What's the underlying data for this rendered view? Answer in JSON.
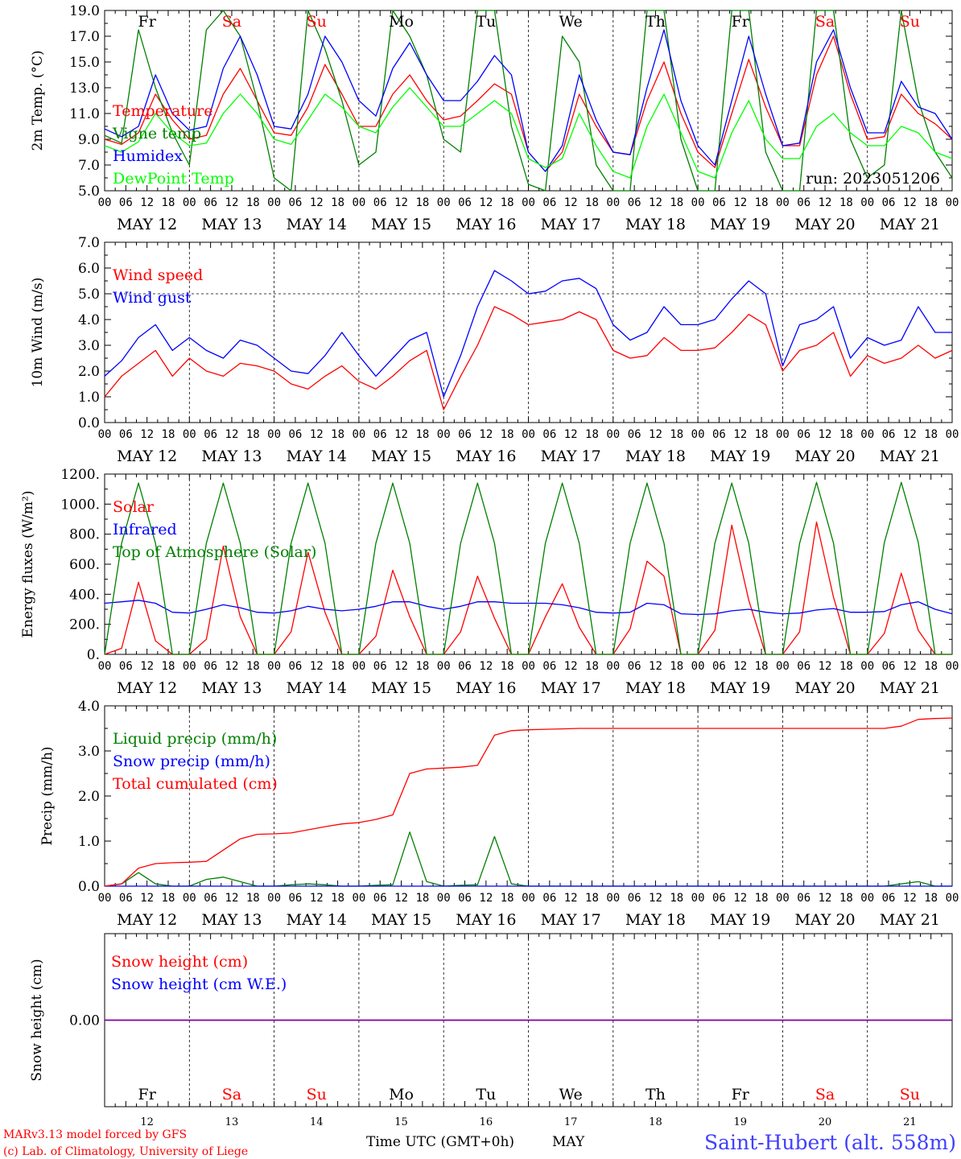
{
  "footer": {
    "model": "MARv3.13 model forced by GFS",
    "credit": "(c) Lab. of Climatology, University of Liege",
    "time_label": "Time UTC (GMT+0h)",
    "month_label": "MAY",
    "station": "Saint-Hubert (alt. 558m)",
    "day_numbers": [
      "12",
      "13",
      "14",
      "15",
      "16",
      "17",
      "18",
      "19",
      "20",
      "21"
    ]
  },
  "days": [
    {
      "abbr": "Fr",
      "date": "MAY 12",
      "weekend": false
    },
    {
      "abbr": "Sa",
      "date": "MAY 13",
      "weekend": true
    },
    {
      "abbr": "Su",
      "date": "MAY 14",
      "weekend": true
    },
    {
      "abbr": "Mo",
      "date": "MAY 15",
      "weekend": false
    },
    {
      "abbr": "Tu",
      "date": "MAY 16",
      "weekend": false
    },
    {
      "abbr": "We",
      "date": "MAY 17",
      "weekend": false
    },
    {
      "abbr": "Th",
      "date": "MAY 18",
      "weekend": false
    },
    {
      "abbr": "Fr",
      "date": "MAY 19",
      "weekend": false
    },
    {
      "abbr": "Sa",
      "date": "MAY 20",
      "weekend": true
    },
    {
      "abbr": "Su",
      "date": "MAY 21",
      "weekend": true
    }
  ],
  "hour_ticks": [
    "00",
    "06",
    "12",
    "18"
  ],
  "colors": {
    "red": "#ff0000",
    "blue": "#0000ff",
    "green": "#008000",
    "lightgreen": "#00ff00",
    "weekend": "#ff0000",
    "purple": "#8000a0"
  },
  "chart_data": [
    {
      "type": "line",
      "ylabel": "2m Temp. (°C)",
      "ylim": [
        5.0,
        19.0
      ],
      "yticks": [
        "5.0",
        "7.0",
        "9.0",
        "11.0",
        "13.0",
        "15.0",
        "17.0",
        "19.0"
      ],
      "run": "run: 2023051206",
      "x_hours_step": 6,
      "series": [
        {
          "name": "Temperature",
          "color": "#ff0000",
          "values": [
            9.0,
            8.6,
            9.5,
            12.5,
            10.5,
            9.0,
            9.3,
            12.5,
            14.5,
            12.0,
            9.5,
            9.3,
            11.5,
            14.8,
            12.5,
            10.0,
            10.0,
            12.5,
            14.0,
            12.0,
            10.5,
            10.8,
            12.0,
            13.3,
            12.5,
            8.0,
            6.5,
            8.0,
            12.5,
            10.0,
            8.0,
            7.8,
            12.0,
            15.0,
            11.0,
            8.0,
            6.8,
            11.0,
            15.2,
            11.5,
            8.5,
            8.5,
            14.0,
            17.0,
            12.5,
            9.0,
            9.2,
            12.5,
            11.0,
            10.2,
            9.0
          ]
        },
        {
          "name": "Vigne temp",
          "color": "#008000",
          "values": [
            9.3,
            8.7,
            17.5,
            13.0,
            9.5,
            7.0,
            17.5,
            19.0,
            17.0,
            12.0,
            6.0,
            5.0,
            19.0,
            16.0,
            12.0,
            7.0,
            8.0,
            19.0,
            17.0,
            14.0,
            9.0,
            8.0,
            19.0,
            19.0,
            10.0,
            5.5,
            5.0,
            17.0,
            15.0,
            7.0,
            5.0,
            5.0,
            19.0,
            19.0,
            9.0,
            5.0,
            5.0,
            19.0,
            19.0,
            8.0,
            5.0,
            5.0,
            19.0,
            19.0,
            9.0,
            6.0,
            7.0,
            19.0,
            12.0,
            8.0,
            6.0
          ]
        },
        {
          "name": "Humidex",
          "color": "#0000ff",
          "values": [
            9.8,
            9.2,
            10.0,
            14.0,
            11.0,
            9.7,
            10.0,
            14.5,
            17.0,
            14.0,
            10.0,
            9.8,
            12.5,
            17.0,
            15.0,
            12.0,
            10.8,
            14.5,
            16.5,
            14.0,
            12.0,
            12.0,
            13.5,
            15.5,
            14.0,
            8.0,
            6.5,
            8.5,
            14.0,
            10.5,
            8.0,
            7.8,
            13.0,
            17.5,
            12.0,
            8.5,
            7.0,
            12.0,
            17.0,
            12.5,
            8.5,
            8.7,
            15.0,
            17.5,
            13.0,
            9.5,
            9.5,
            13.5,
            11.5,
            11.0,
            9.0
          ]
        },
        {
          "name": "DewPoint Temp",
          "color": "#00ff00",
          "values": [
            8.5,
            8.0,
            8.8,
            11.0,
            9.5,
            8.5,
            8.7,
            11.0,
            12.5,
            11.0,
            9.0,
            8.6,
            10.5,
            12.5,
            11.5,
            10.0,
            9.5,
            11.5,
            13.0,
            11.5,
            10.0,
            10.0,
            11.0,
            12.0,
            11.0,
            7.5,
            6.8,
            7.5,
            11.0,
            8.5,
            6.5,
            6.0,
            10.0,
            12.5,
            9.5,
            6.5,
            6.0,
            9.5,
            12.0,
            9.0,
            7.5,
            7.5,
            10.0,
            11.0,
            9.5,
            8.5,
            8.5,
            10.0,
            9.5,
            8.0,
            7.5
          ]
        }
      ]
    },
    {
      "type": "line",
      "ylabel": "10m Wind (m/s)",
      "ylim": [
        0.0,
        7.0
      ],
      "yticks": [
        "0.0",
        "1.0",
        "2.0",
        "3.0",
        "4.0",
        "5.0",
        "6.0",
        "7.0"
      ],
      "ref_line": 5.0,
      "series": [
        {
          "name": "Wind speed",
          "color": "#ff0000",
          "values": [
            1.0,
            1.8,
            2.3,
            2.8,
            1.8,
            2.5,
            2.0,
            1.8,
            2.3,
            2.2,
            2.0,
            1.5,
            1.3,
            1.8,
            2.2,
            1.6,
            1.3,
            1.8,
            2.4,
            2.8,
            0.5,
            1.8,
            3.0,
            4.5,
            4.2,
            3.8,
            3.9,
            4.0,
            4.3,
            4.0,
            2.8,
            2.5,
            2.6,
            3.3,
            2.8,
            2.8,
            2.9,
            3.5,
            4.2,
            3.8,
            2.0,
            2.8,
            3.0,
            3.5,
            1.8,
            2.6,
            2.3,
            2.5,
            3.0,
            2.5,
            2.8
          ]
        },
        {
          "name": "Wind gust",
          "color": "#0000ff",
          "values": [
            1.8,
            2.4,
            3.3,
            3.8,
            2.8,
            3.3,
            2.8,
            2.5,
            3.2,
            3.0,
            2.5,
            2.0,
            1.9,
            2.6,
            3.5,
            2.6,
            1.8,
            2.5,
            3.2,
            3.5,
            1.0,
            2.6,
            4.5,
            5.9,
            5.5,
            5.0,
            5.1,
            5.5,
            5.6,
            5.2,
            3.8,
            3.2,
            3.5,
            4.5,
            3.8,
            3.8,
            4.0,
            4.8,
            5.5,
            5.0,
            2.2,
            3.8,
            4.0,
            4.5,
            2.5,
            3.3,
            3.0,
            3.2,
            4.5,
            3.5,
            3.5
          ]
        }
      ]
    },
    {
      "type": "line",
      "ylabel": "Energy fluxes (W/m²)",
      "ylim": [
        0,
        1200
      ],
      "yticks": [
        "0.",
        "200.",
        "400.",
        "600.",
        "800.",
        "1000.",
        "1200."
      ],
      "series": [
        {
          "name": "Solar",
          "color": "#ff0000",
          "values": [
            0,
            40,
            480,
            90,
            0,
            0,
            100,
            720,
            250,
            0,
            0,
            150,
            680,
            280,
            0,
            0,
            120,
            560,
            250,
            0,
            0,
            150,
            520,
            240,
            0,
            0,
            250,
            470,
            180,
            0,
            0,
            170,
            620,
            520,
            0,
            0,
            160,
            860,
            360,
            0,
            0,
            150,
            880,
            380,
            0,
            0,
            140,
            540,
            160,
            0,
            0
          ]
        },
        {
          "name": "Infrared",
          "color": "#0000ff",
          "values": [
            340,
            350,
            360,
            340,
            280,
            275,
            300,
            330,
            310,
            280,
            275,
            290,
            320,
            300,
            290,
            300,
            320,
            350,
            350,
            320,
            300,
            320,
            350,
            350,
            340,
            340,
            340,
            330,
            310,
            280,
            275,
            280,
            340,
            330,
            270,
            265,
            270,
            290,
            300,
            280,
            270,
            275,
            295,
            305,
            280,
            280,
            285,
            330,
            350,
            300,
            270
          ]
        },
        {
          "name": "Top of Atmosphere (Solar)",
          "color": "#008000",
          "values": [
            0,
            740,
            1140,
            740,
            0,
            0,
            740,
            1140,
            740,
            0,
            0,
            740,
            1140,
            740,
            0,
            0,
            740,
            1140,
            740,
            0,
            0,
            740,
            1140,
            740,
            0,
            0,
            740,
            1140,
            740,
            0,
            0,
            740,
            1140,
            740,
            0,
            0,
            740,
            1140,
            740,
            0,
            0,
            740,
            1145,
            740,
            0,
            0,
            745,
            1145,
            745,
            0,
            0
          ]
        }
      ]
    },
    {
      "type": "line",
      "ylabel": "Precip (mm/h)",
      "ylim": [
        0.0,
        4.0
      ],
      "yticks": [
        "0.0",
        "1.0",
        "2.0",
        "3.0",
        "4.0"
      ],
      "series": [
        {
          "name": "Liquid precip (mm/h)",
          "color": "#008000",
          "values": [
            0,
            0.05,
            0.3,
            0.05,
            0,
            0,
            0.15,
            0.2,
            0.1,
            0,
            0,
            0.03,
            0.05,
            0.03,
            0,
            0,
            0.02,
            0.03,
            1.2,
            0.1,
            0,
            0.02,
            0.03,
            1.1,
            0.05,
            0,
            0,
            0,
            0,
            0,
            0,
            0,
            0,
            0,
            0,
            0,
            0,
            0,
            0,
            0,
            0,
            0,
            0,
            0,
            0,
            0,
            0,
            0.05,
            0.1,
            0,
            0
          ]
        },
        {
          "name": "Snow precip (mm/h)",
          "color": "#0000ff",
          "values": [
            0,
            0,
            0,
            0,
            0,
            0,
            0,
            0,
            0,
            0,
            0,
            0,
            0,
            0,
            0,
            0,
            0,
            0,
            0,
            0,
            0,
            0,
            0,
            0,
            0,
            0,
            0,
            0,
            0,
            0,
            0,
            0,
            0,
            0,
            0,
            0,
            0,
            0,
            0,
            0,
            0,
            0,
            0,
            0,
            0,
            0,
            0,
            0,
            0,
            0,
            0
          ]
        },
        {
          "name": "Total cumulated (cm)",
          "color": "#ff0000",
          "values": [
            0,
            0.05,
            0.4,
            0.5,
            0.52,
            0.53,
            0.55,
            0.8,
            1.05,
            1.15,
            1.16,
            1.18,
            1.25,
            1.32,
            1.38,
            1.41,
            1.48,
            1.58,
            2.5,
            2.6,
            2.62,
            2.64,
            2.68,
            3.35,
            3.45,
            3.47,
            3.48,
            3.49,
            3.5,
            3.5,
            3.5,
            3.5,
            3.5,
            3.5,
            3.5,
            3.5,
            3.5,
            3.5,
            3.5,
            3.5,
            3.5,
            3.5,
            3.5,
            3.5,
            3.5,
            3.5,
            3.5,
            3.55,
            3.7,
            3.72,
            3.73
          ]
        }
      ]
    },
    {
      "type": "line",
      "ylabel": "Snow height (cm)",
      "ylim": [
        -1,
        1
      ],
      "yticks": [
        "0.00"
      ],
      "series": [
        {
          "name": "Snow height (cm)",
          "color": "#ff0000",
          "values": [
            0,
            0
          ]
        },
        {
          "name": "Snow height (cm W.E.)",
          "color": "#0000ff",
          "values": [
            0,
            0
          ]
        }
      ]
    }
  ]
}
